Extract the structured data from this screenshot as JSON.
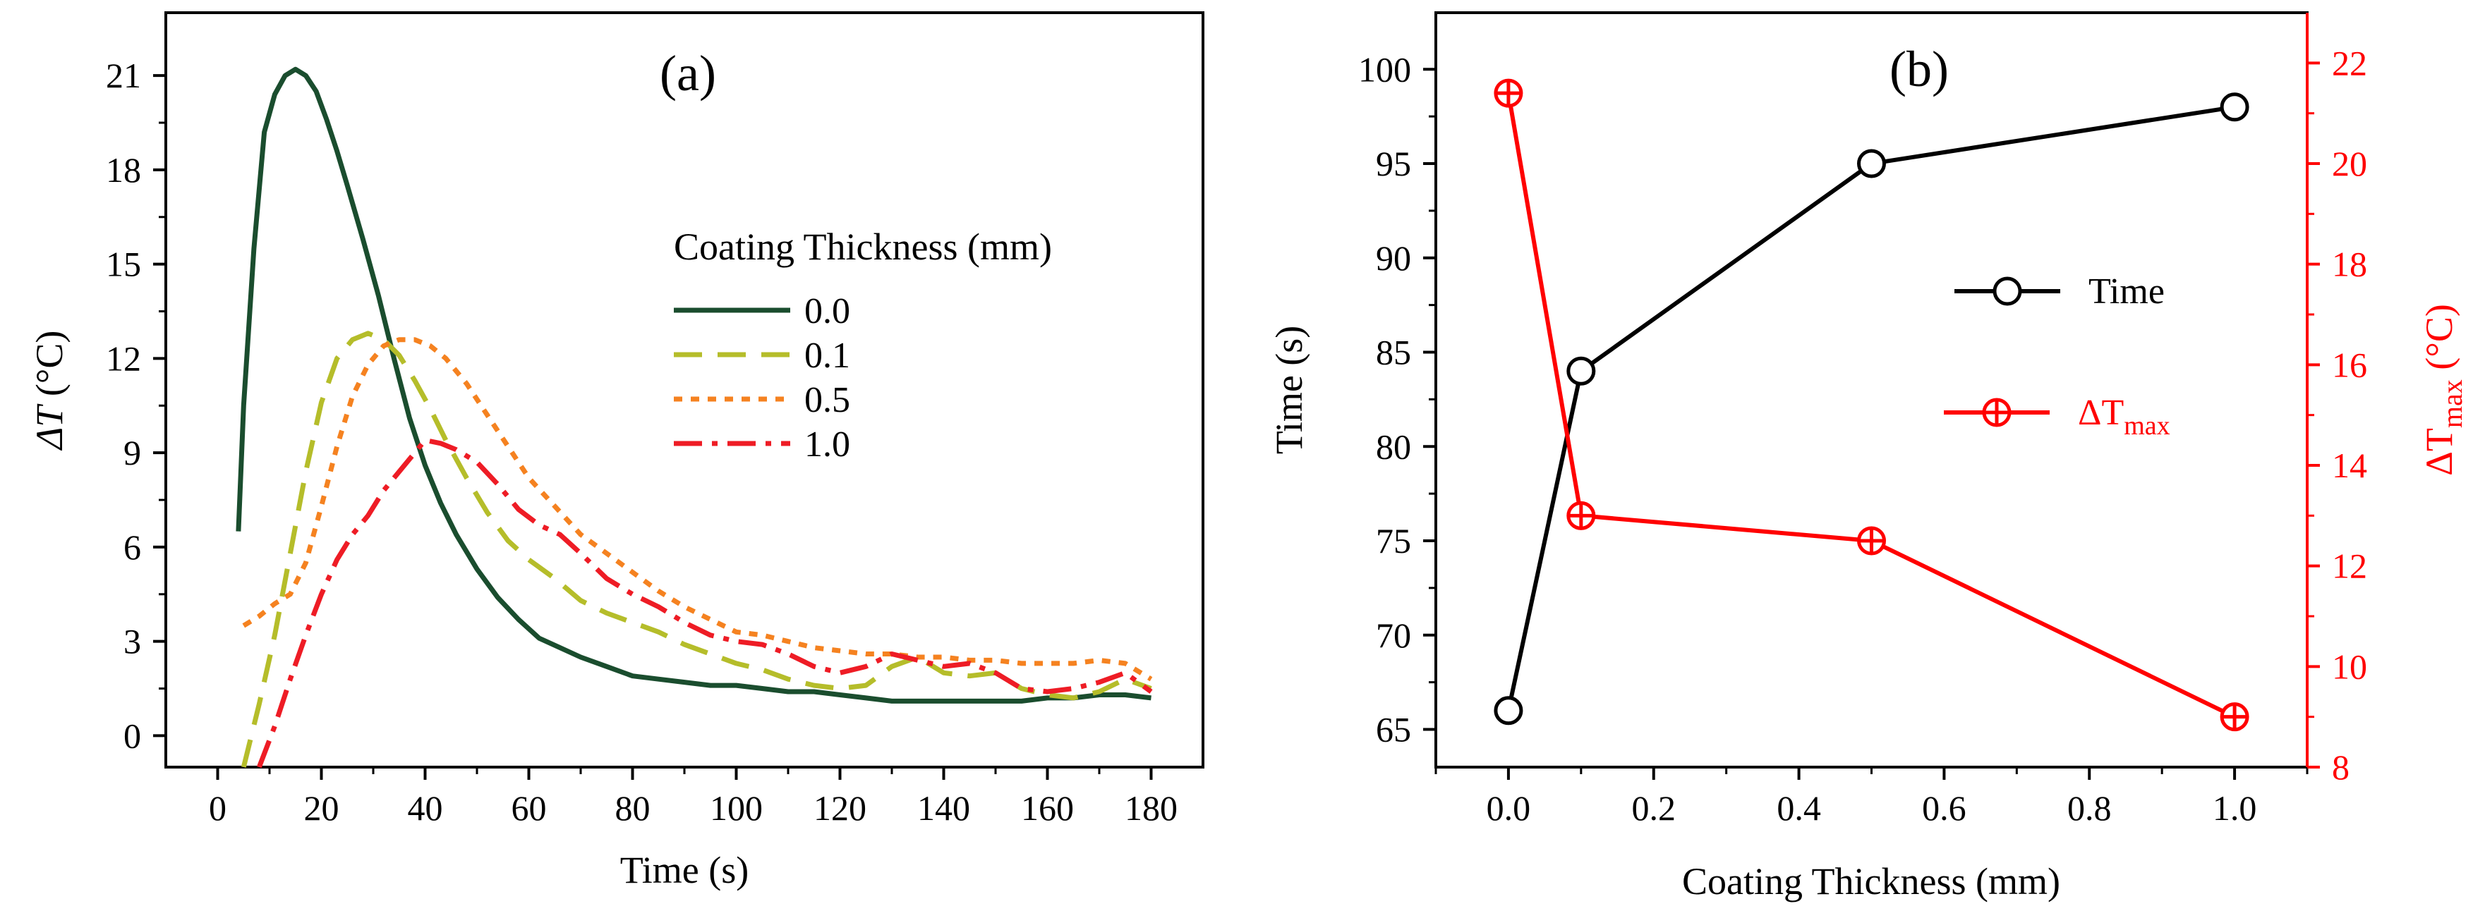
{
  "chart_data": [
    {
      "type": "line",
      "panel_label": "(a)",
      "xlabel": "Time (s)",
      "ylabel": "ΔT (°C)",
      "xlim": [
        -10,
        190
      ],
      "ylim": [
        -1,
        23
      ],
      "xticks": [
        0,
        20,
        40,
        60,
        80,
        100,
        120,
        140,
        160,
        180
      ],
      "yticks": [
        0,
        3,
        6,
        9,
        12,
        15,
        18,
        21
      ],
      "legend_title": "Coating Thickness (mm)",
      "legend_position": "right",
      "series": [
        {
          "name": "0.0",
          "color": "#1a4d2e",
          "dash": "solid",
          "x": [
            4,
            5,
            7,
            9,
            11,
            13,
            15,
            17,
            19,
            21,
            23,
            25,
            28,
            31,
            34,
            37,
            40,
            43,
            46,
            50,
            54,
            58,
            62,
            66,
            70,
            75,
            80,
            85,
            90,
            95,
            100,
            105,
            110,
            115,
            120,
            125,
            130,
            135,
            140,
            145,
            150,
            155,
            160,
            165,
            170,
            175,
            180
          ],
          "y": [
            6.5,
            10.5,
            15.5,
            19.2,
            20.4,
            21.0,
            21.2,
            21.0,
            20.5,
            19.6,
            18.6,
            17.5,
            15.8,
            14.0,
            12.0,
            10.1,
            8.6,
            7.4,
            6.4,
            5.3,
            4.4,
            3.7,
            3.1,
            2.8,
            2.5,
            2.2,
            1.9,
            1.8,
            1.7,
            1.6,
            1.6,
            1.5,
            1.4,
            1.4,
            1.3,
            1.2,
            1.1,
            1.1,
            1.1,
            1.1,
            1.1,
            1.1,
            1.2,
            1.2,
            1.3,
            1.3,
            1.2
          ]
        },
        {
          "name": "0.1",
          "color": "#b5bd2a",
          "dash": "40 22",
          "x": [
            5,
            8,
            11,
            14,
            17,
            20,
            23,
            26,
            29,
            32,
            35,
            38,
            41,
            44,
            48,
            52,
            56,
            60,
            65,
            70,
            75,
            80,
            85,
            90,
            95,
            100,
            105,
            110,
            115,
            120,
            125,
            130,
            135,
            140,
            145,
            150,
            155,
            160,
            165,
            170,
            175,
            180
          ],
          "y": [
            -1.0,
            1.0,
            3.2,
            5.8,
            8.4,
            10.6,
            12.0,
            12.6,
            12.8,
            12.6,
            12.1,
            11.3,
            10.4,
            9.4,
            8.2,
            7.1,
            6.2,
            5.6,
            5.0,
            4.3,
            3.9,
            3.6,
            3.3,
            2.9,
            2.6,
            2.3,
            2.1,
            1.8,
            1.6,
            1.5,
            1.6,
            2.2,
            2.5,
            2.0,
            1.9,
            2.0,
            1.5,
            1.3,
            1.2,
            1.4,
            1.8,
            1.5
          ]
        },
        {
          "name": "0.5",
          "color": "#f58220",
          "dash": "12 12",
          "x": [
            5,
            8,
            11,
            14,
            17,
            20,
            23,
            26,
            29,
            32,
            35,
            38,
            41,
            44,
            48,
            52,
            56,
            60,
            65,
            70,
            75,
            80,
            85,
            90,
            95,
            100,
            105,
            110,
            115,
            120,
            125,
            130,
            135,
            140,
            145,
            150,
            155,
            160,
            165,
            170,
            175,
            180
          ],
          "y": [
            3.5,
            3.8,
            4.2,
            4.5,
            5.5,
            7.3,
            9.2,
            10.8,
            11.8,
            12.4,
            12.6,
            12.6,
            12.4,
            12.0,
            11.2,
            10.2,
            9.2,
            8.2,
            7.3,
            6.4,
            5.8,
            5.2,
            4.6,
            4.1,
            3.7,
            3.3,
            3.2,
            3.0,
            2.8,
            2.7,
            2.6,
            2.6,
            2.5,
            2.5,
            2.4,
            2.4,
            2.3,
            2.3,
            2.3,
            2.4,
            2.3,
            1.8
          ]
        },
        {
          "name": "1.0",
          "color": "#ee1c25",
          "dash": "40 14 8 14",
          "x": [
            8,
            11,
            14,
            17,
            20,
            23,
            26,
            29,
            32,
            35,
            38,
            40,
            43,
            46,
            50,
            54,
            58,
            62,
            66,
            70,
            75,
            80,
            85,
            90,
            95,
            100,
            105,
            110,
            115,
            120,
            125,
            130,
            135,
            140,
            145,
            150,
            155,
            160,
            165,
            170,
            175,
            180
          ],
          "y": [
            -1.0,
            0.3,
            1.8,
            3.2,
            4.5,
            5.6,
            6.4,
            7.0,
            7.8,
            8.4,
            9.0,
            9.4,
            9.3,
            9.1,
            8.7,
            8.0,
            7.2,
            6.7,
            6.4,
            5.8,
            5.0,
            4.5,
            4.1,
            3.6,
            3.2,
            3.0,
            2.9,
            2.6,
            2.2,
            2.0,
            2.2,
            2.6,
            2.4,
            2.2,
            2.3,
            2.0,
            1.5,
            1.4,
            1.5,
            1.7,
            2.0,
            1.4
          ]
        }
      ]
    },
    {
      "type": "line",
      "panel_label": "(b)",
      "xlabel": "Coating Thickness (mm)",
      "ylabel": "Time (s)",
      "y2label": "ΔTmax (°C)",
      "xlim": [
        -0.1,
        1.1
      ],
      "ylim": [
        63,
        103
      ],
      "y2lim": [
        8,
        23
      ],
      "xticks": [
        0.0,
        0.2,
        0.4,
        0.6,
        0.8,
        1.0
      ],
      "yticks": [
        65,
        70,
        75,
        80,
        85,
        90,
        95,
        100
      ],
      "y2ticks": [
        8,
        10,
        12,
        14,
        16,
        18,
        20,
        22
      ],
      "legend_position": "center-right",
      "series": [
        {
          "name": "Time",
          "axis": "left",
          "color": "#000000",
          "marker": "open-circle",
          "x": [
            0.0,
            0.1,
            0.5,
            1.0
          ],
          "y": [
            66,
            84,
            95,
            98
          ]
        },
        {
          "name": "ΔTmax",
          "name_main": "ΔT",
          "name_sub": "max",
          "axis": "right",
          "color": "#ff0000",
          "marker": "circled-plus",
          "x": [
            0.0,
            0.1,
            0.5,
            1.0
          ],
          "y": [
            21.4,
            13.0,
            12.5,
            9.0
          ]
        }
      ]
    }
  ]
}
